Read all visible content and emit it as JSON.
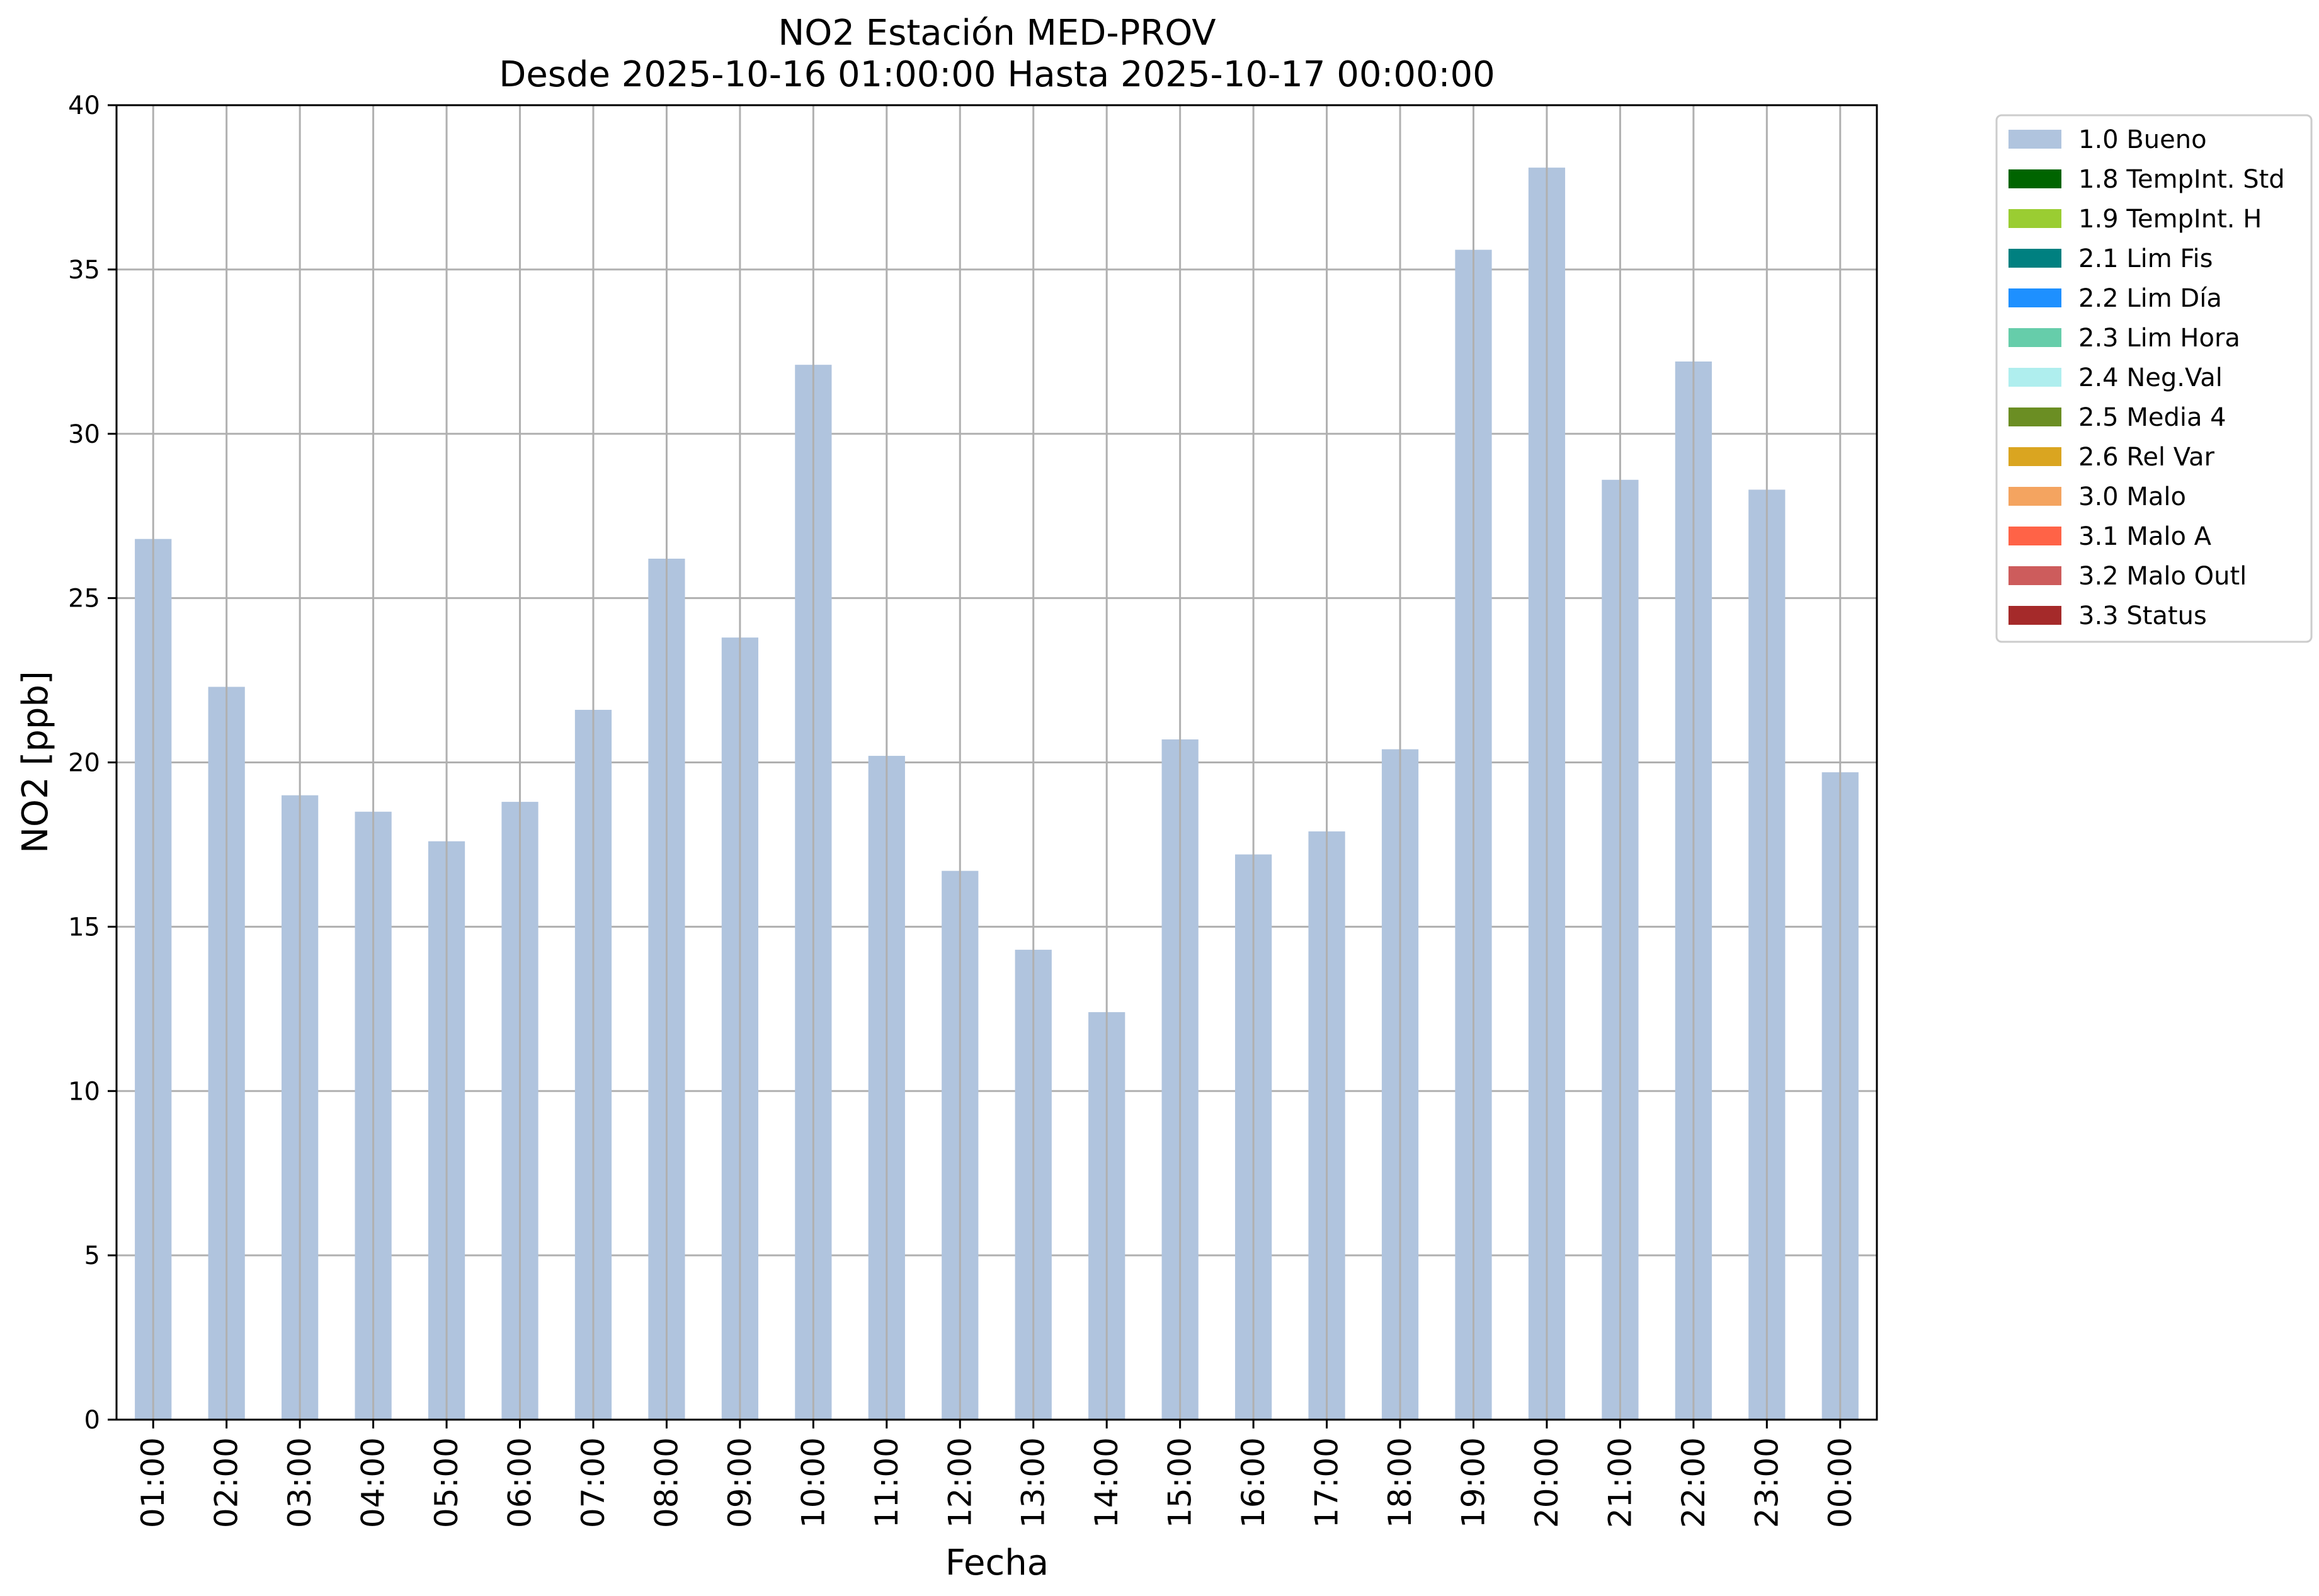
{
  "chart_data": {
    "type": "bar",
    "title": "NO2 Estación MED-PROV",
    "subtitle": "Desde 2025-10-16 01:00:00 Hasta 2025-10-17 00:00:00",
    "xlabel": "Fecha",
    "ylabel": "NO2 [ppb]",
    "ylim": [
      0,
      40
    ],
    "yticks": [
      0,
      5,
      10,
      15,
      20,
      25,
      30,
      35,
      40
    ],
    "grid": true,
    "legend_position": "outside-top-right",
    "categories": [
      "01:00",
      "02:00",
      "03:00",
      "04:00",
      "05:00",
      "06:00",
      "07:00",
      "08:00",
      "09:00",
      "10:00",
      "11:00",
      "12:00",
      "13:00",
      "14:00",
      "15:00",
      "16:00",
      "17:00",
      "18:00",
      "19:00",
      "20:00",
      "21:00",
      "22:00",
      "23:00",
      "00:00"
    ],
    "series": [
      {
        "name": "1.0 Bueno",
        "color": "#b0c4de",
        "values": [
          26.8,
          22.3,
          19.0,
          18.5,
          17.6,
          18.8,
          21.6,
          26.2,
          23.8,
          32.1,
          20.2,
          16.7,
          14.3,
          12.4,
          20.7,
          17.2,
          17.9,
          20.4,
          35.6,
          38.1,
          28.6,
          32.2,
          28.3,
          19.7
        ]
      }
    ],
    "legend": [
      {
        "label": "1.0 Bueno",
        "color": "#b0c4de"
      },
      {
        "label": "1.8 TempInt. Std",
        "color": "#006400"
      },
      {
        "label": "1.9 TempInt. H",
        "color": "#9acd32"
      },
      {
        "label": "2.1 Lim Fis",
        "color": "#008080"
      },
      {
        "label": "2.2 Lim Día",
        "color": "#1e90ff"
      },
      {
        "label": "2.3 Lim Hora",
        "color": "#66cdaa"
      },
      {
        "label": "2.4 Neg.Val",
        "color": "#afeeee"
      },
      {
        "label": "2.5 Media 4",
        "color": "#6b8e23"
      },
      {
        "label": "2.6 Rel Var",
        "color": "#daa520"
      },
      {
        "label": "3.0 Malo",
        "color": "#f4a460"
      },
      {
        "label": "3.1 Malo A",
        "color": "#ff6347"
      },
      {
        "label": "3.2 Malo Outl",
        "color": "#cd5c5c"
      },
      {
        "label": "3.3 Status",
        "color": "#a52a2a"
      }
    ]
  }
}
